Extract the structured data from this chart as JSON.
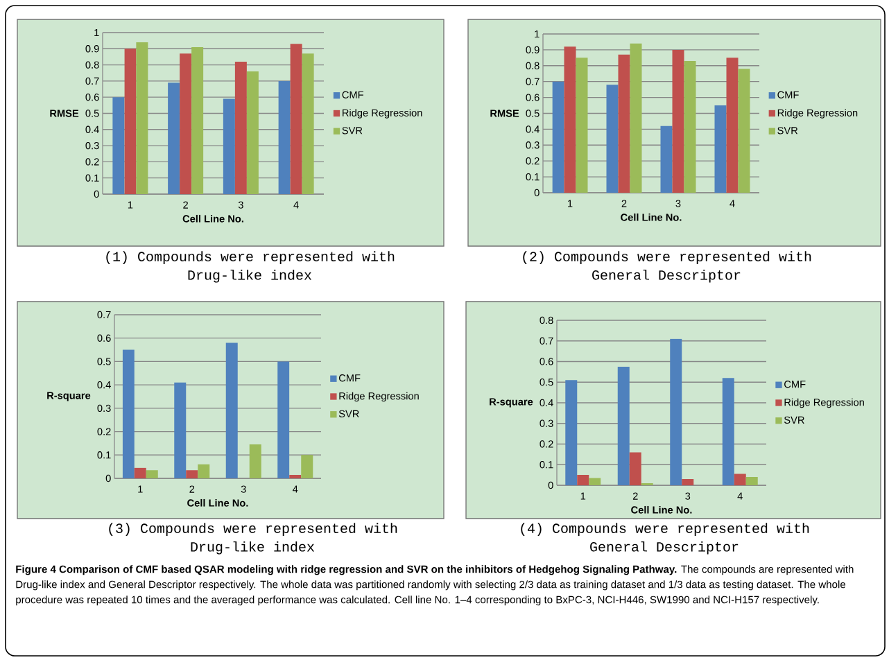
{
  "chart_data": [
    {
      "type": "bar",
      "title": "(1) Compounds were represented with Drug-like index",
      "xlabel": "Cell Line No.",
      "ylabel": "RMSE",
      "categories": [
        "1",
        "2",
        "3",
        "4"
      ],
      "ylim": [
        0,
        1
      ],
      "yticks": [
        0,
        0.1,
        0.2,
        0.3,
        0.4,
        0.5,
        0.6,
        0.7,
        0.8,
        0.9,
        1
      ],
      "grid": "y",
      "legend": "right",
      "series": [
        {
          "name": "CMF",
          "color": "#4f81bd",
          "values": [
            0.6,
            0.69,
            0.59,
            0.7
          ]
        },
        {
          "name": "Ridge Regression",
          "color": "#c0504d",
          "values": [
            0.9,
            0.87,
            0.82,
            0.93
          ]
        },
        {
          "name": "SVR",
          "color": "#9bbb59",
          "values": [
            0.94,
            0.91,
            0.76,
            0.87
          ]
        }
      ]
    },
    {
      "type": "bar",
      "title": "(2) Compounds were represented with General Descriptor",
      "xlabel": "Cell Line No.",
      "ylabel": "RMSE",
      "categories": [
        "1",
        "2",
        "3",
        "4"
      ],
      "ylim": [
        0,
        1
      ],
      "yticks": [
        0,
        0.1,
        0.2,
        0.3,
        0.4,
        0.5,
        0.6,
        0.7,
        0.8,
        0.9,
        1
      ],
      "grid": "y",
      "legend": "right",
      "series": [
        {
          "name": "CMF",
          "color": "#4f81bd",
          "values": [
            0.7,
            0.68,
            0.42,
            0.55
          ]
        },
        {
          "name": "Ridge Regression",
          "color": "#c0504d",
          "values": [
            0.92,
            0.87,
            0.9,
            0.85
          ]
        },
        {
          "name": "SVR",
          "color": "#9bbb59",
          "values": [
            0.85,
            0.94,
            0.83,
            0.78
          ]
        }
      ]
    },
    {
      "type": "bar",
      "title": "(3) Compounds were represented with Drug-like index",
      "xlabel": "Cell Line No.",
      "ylabel": "R-square",
      "categories": [
        "1",
        "2",
        "3",
        "4"
      ],
      "ylim": [
        0,
        0.7
      ],
      "yticks": [
        0,
        0.1,
        0.2,
        0.3,
        0.4,
        0.5,
        0.6,
        0.7
      ],
      "grid": "y",
      "legend": "right",
      "series": [
        {
          "name": "CMF",
          "color": "#4f81bd",
          "values": [
            0.55,
            0.41,
            0.58,
            0.5
          ]
        },
        {
          "name": "Ridge Regression",
          "color": "#c0504d",
          "values": [
            0.045,
            0.035,
            0,
            0.015
          ]
        },
        {
          "name": "SVR",
          "color": "#9bbb59",
          "values": [
            0.035,
            0.06,
            0.145,
            0.1
          ]
        }
      ]
    },
    {
      "type": "bar",
      "title": "(4) Compounds were represented with General Descriptor",
      "xlabel": "Cell Line No.",
      "ylabel": "R-square",
      "categories": [
        "1",
        "2",
        "3",
        "4"
      ],
      "ylim": [
        0,
        0.8
      ],
      "yticks": [
        0,
        0.1,
        0.2,
        0.3,
        0.4,
        0.5,
        0.6,
        0.7,
        0.8
      ],
      "grid": "y",
      "legend": "right",
      "series": [
        {
          "name": "CMF",
          "color": "#4f81bd",
          "values": [
            0.51,
            0.575,
            0.71,
            0.52
          ]
        },
        {
          "name": "Ridge Regression",
          "color": "#c0504d",
          "values": [
            0.05,
            0.16,
            0.03,
            0.055
          ]
        },
        {
          "name": "SVR",
          "color": "#9bbb59",
          "values": [
            0.035,
            0.01,
            0,
            0.04
          ]
        }
      ],
      "annotations": [
        "**Figure 4 Comparison of CMF based QSAR modeling with ridge regression and SVR on the inhibitors of Hedgehog Signaling Pathway.** The compounds are represented with Drug-like index and General Descriptor respectively. The whole data was partitioned randomly with selecting 2/3 data as training dataset and 1/3 data as testing dataset. The whole procedure was repeated 10 times and the averaged performance was calculated. Cell line No. 1–4 corresponding to BxPC-3, NCI-H446, SW1990 and NCI-H157 respectively."
      ]
    }
  ]
}
